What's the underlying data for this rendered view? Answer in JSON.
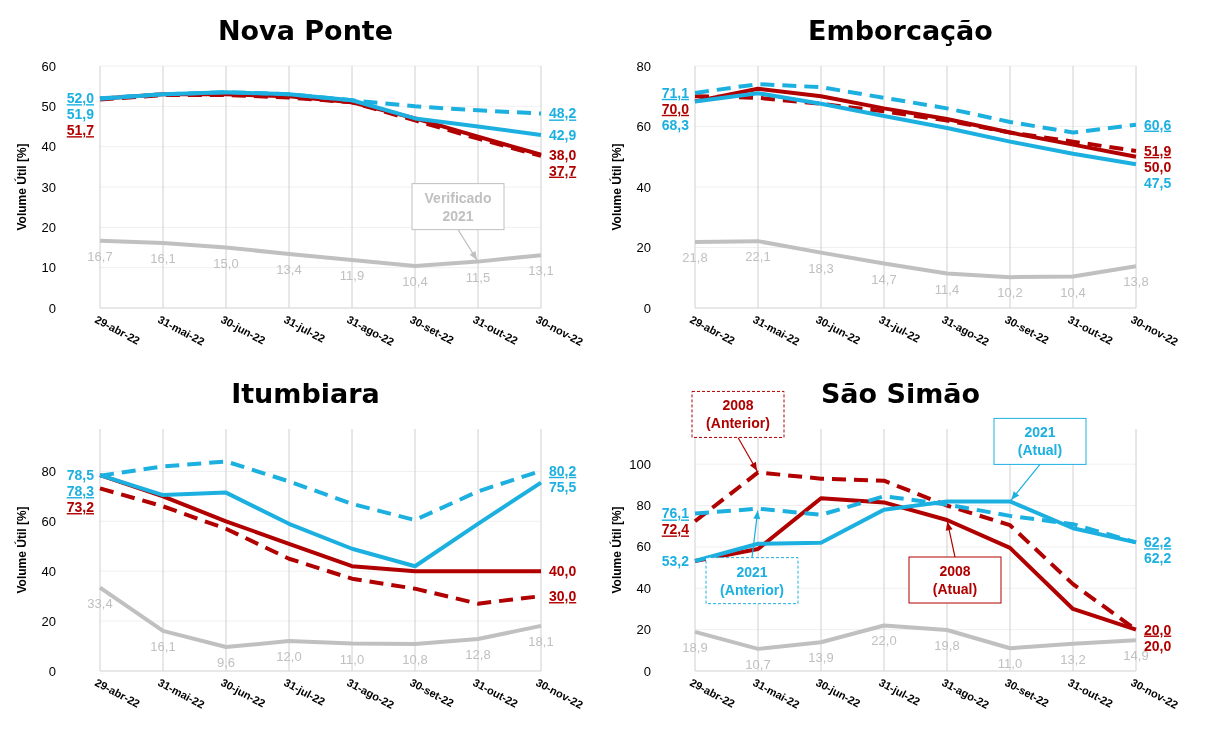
{
  "chart_data": [
    {
      "type": "line",
      "title": "Nova Ponte",
      "ylabel": "Volume Útil [%]",
      "categories": [
        "29-abr-22",
        "31-mai-22",
        "30-jun-22",
        "31-jul-22",
        "31-ago-22",
        "30-set-22",
        "31-out-22",
        "30-nov-22"
      ],
      "ylim": [
        0,
        60
      ],
      "yticks": [
        0,
        10,
        20,
        30,
        40,
        50,
        60
      ],
      "grid": true,
      "marker": "none",
      "series": [
        {
          "color": "#c0c0c0",
          "line_style": "solid",
          "values": [
            16.7,
            16.1,
            15.0,
            13.4,
            11.9,
            10.4,
            11.5,
            13.1
          ],
          "value_labels": [
            "16,7",
            "16,1",
            "15,0",
            "13,4",
            "11,9",
            "10,4",
            "11,5",
            "13,1"
          ]
        },
        {
          "color": "#b00000",
          "line_style": "dashed",
          "values": [
            51.7,
            52.8,
            52.8,
            52.2,
            51,
            46.5,
            42,
            37.7
          ],
          "value_labels": [
            "51,7",
            null,
            null,
            null,
            null,
            null,
            null,
            "37,7"
          ]
        },
        {
          "color": "#b00000",
          "line_style": "solid",
          "values": [
            51.9,
            53,
            53,
            52.5,
            51,
            47,
            42.5,
            38.0
          ],
          "value_labels": [
            null,
            null,
            null,
            null,
            null,
            null,
            null,
            "38,0"
          ]
        },
        {
          "color": "#1cb0e0",
          "line_style": "dashed",
          "values": [
            52.0,
            53,
            53.5,
            53,
            51.5,
            50,
            49,
            48.2
          ],
          "value_labels": [
            "52,0",
            null,
            null,
            null,
            null,
            null,
            null,
            "48,2"
          ]
        },
        {
          "color": "#1cb0e0",
          "line_style": "solid",
          "values": [
            51.9,
            53,
            53.5,
            53,
            51.5,
            47,
            45,
            42.9
          ],
          "value_labels": [
            "51,9",
            null,
            null,
            null,
            null,
            null,
            null,
            "42,9"
          ]
        }
      ],
      "annotations": [
        {
          "text": "Verificado 2021",
          "x": "31-out-22",
          "y": 11.5
        }
      ]
    },
    {
      "type": "line",
      "title": "Emborcação",
      "ylabel": "Volume Útil [%]",
      "categories": [
        "29-abr-22",
        "31-mai-22",
        "30-jun-22",
        "31-jul-22",
        "31-ago-22",
        "30-set-22",
        "31-out-22",
        "30-nov-22"
      ],
      "ylim": [
        0,
        80
      ],
      "yticks": [
        0,
        20,
        40,
        60,
        80
      ],
      "grid": true,
      "marker": "none",
      "series": [
        {
          "color": "#c0c0c0",
          "line_style": "solid",
          "values": [
            21.8,
            22.1,
            18.3,
            14.7,
            11.4,
            10.2,
            10.4,
            13.8
          ],
          "value_labels": [
            "21,8",
            "22,1",
            "18,3",
            "14,7",
            "11,4",
            "10,2",
            "10,4",
            "13,8"
          ]
        },
        {
          "color": "#b00000",
          "line_style": "dashed",
          "values": [
            70.0,
            69.5,
            67.5,
            65,
            62,
            58,
            55,
            51.9
          ],
          "value_labels": [
            "70,0",
            null,
            null,
            null,
            null,
            null,
            null,
            "51,9"
          ]
        },
        {
          "color": "#b00000",
          "line_style": "solid",
          "values": [
            68.3,
            72.5,
            70,
            66,
            62.5,
            58,
            54,
            50.0
          ],
          "value_labels": [
            null,
            null,
            null,
            null,
            null,
            null,
            null,
            "50,0"
          ]
        },
        {
          "color": "#1cb0e0",
          "line_style": "dashed",
          "values": [
            71.1,
            74,
            73,
            69.5,
            66,
            61.5,
            58,
            60.6
          ],
          "value_labels": [
            "71,1",
            null,
            null,
            null,
            null,
            null,
            null,
            "60,6"
          ]
        },
        {
          "color": "#1cb0e0",
          "line_style": "solid",
          "values": [
            68.3,
            71,
            67.5,
            63.5,
            59.5,
            55,
            51,
            47.5
          ],
          "value_labels": [
            "68,3",
            null,
            null,
            null,
            null,
            null,
            null,
            "47,5"
          ]
        }
      ]
    },
    {
      "type": "line",
      "title": "Itumbiara",
      "ylabel": "Volume Útil [%]",
      "categories": [
        "29-abr-22",
        "31-mai-22",
        "30-jun-22",
        "31-jul-22",
        "31-ago-22",
        "30-set-22",
        "31-out-22",
        "30-nov-22"
      ],
      "ylim": [
        0,
        97
      ],
      "yticks": [
        0,
        20,
        40,
        60,
        80
      ],
      "grid": true,
      "marker": "none",
      "series": [
        {
          "color": "#c0c0c0",
          "line_style": "solid",
          "values": [
            33.4,
            16.1,
            9.6,
            12.0,
            11.0,
            10.8,
            12.8,
            18.1
          ],
          "value_labels": [
            "33,4",
            "16,1",
            "9,6",
            "12,0",
            "11,0",
            "10,8",
            "12,8",
            "18,1"
          ]
        },
        {
          "color": "#b00000",
          "line_style": "dashed",
          "values": [
            73.2,
            66,
            57,
            45,
            37,
            33,
            27,
            30.0
          ],
          "value_labels": [
            "73,2",
            null,
            null,
            null,
            null,
            null,
            null,
            "30,0"
          ]
        },
        {
          "color": "#b00000",
          "line_style": "solid",
          "values": [
            78.5,
            70,
            60,
            51,
            42,
            40,
            40,
            40.0
          ],
          "value_labels": [
            null,
            null,
            null,
            null,
            null,
            null,
            null,
            "40,0"
          ]
        },
        {
          "color": "#1cb0e0",
          "line_style": "dashed",
          "values": [
            78.3,
            82,
            84,
            76,
            67,
            60.5,
            72,
            80.2
          ],
          "value_labels": [
            "78,3",
            null,
            null,
            null,
            null,
            null,
            null,
            "80,2"
          ]
        },
        {
          "color": "#1cb0e0",
          "line_style": "solid",
          "values": [
            78.5,
            70.5,
            71.5,
            59,
            49,
            42,
            59,
            75.5
          ],
          "value_labels": [
            "78,5",
            null,
            null,
            null,
            null,
            null,
            null,
            "75,5"
          ]
        }
      ]
    },
    {
      "type": "line",
      "title": "São Simão",
      "ylabel": "Volume Útil [%]",
      "categories": [
        "29-abr-22",
        "31-mai-22",
        "30-jun-22",
        "31-jul-22",
        "31-ago-22",
        "30-set-22",
        "31-out-22",
        "30-nov-22"
      ],
      "ylim": [
        0,
        117
      ],
      "yticks": [
        0,
        20,
        40,
        60,
        80,
        100
      ],
      "grid": true,
      "marker": "none",
      "series": [
        {
          "color": "#c0c0c0",
          "line_style": "solid",
          "values": [
            18.9,
            10.7,
            13.9,
            22.0,
            19.8,
            11.0,
            13.2,
            14.9
          ],
          "value_labels": [
            "18,9",
            "10,7",
            "13,9",
            "22,0",
            "19,8",
            "11,0",
            "13,2",
            "14,9"
          ]
        },
        {
          "color": "#b00000",
          "line_style": "dashed",
          "values": [
            72.4,
            96,
            93,
            92,
            80,
            70.5,
            42,
            20.0
          ],
          "value_labels": [
            "72,4",
            null,
            null,
            null,
            null,
            null,
            null,
            "20,0"
          ]
        },
        {
          "color": "#b00000",
          "line_style": "solid",
          "values": [
            53.2,
            59,
            83.5,
            81.5,
            73,
            59.5,
            30,
            20.0
          ],
          "value_labels": [
            null,
            null,
            null,
            null,
            null,
            null,
            null,
            "20,0"
          ]
        },
        {
          "color": "#1cb0e0",
          "line_style": "dashed",
          "values": [
            76.1,
            78.5,
            75.5,
            84.5,
            80.5,
            75,
            71,
            62.2
          ],
          "value_labels": [
            "76,1",
            null,
            null,
            null,
            null,
            null,
            null,
            "62,2"
          ]
        },
        {
          "color": "#1cb0e0",
          "line_style": "solid",
          "values": [
            53.2,
            61.5,
            62,
            78,
            82,
            82,
            69,
            62.2
          ],
          "value_labels": [
            "53,2",
            null,
            null,
            null,
            null,
            null,
            null,
            "62,2"
          ]
        }
      ],
      "annotations": [
        {
          "text": "2008 (Anterior)",
          "x": "31-mai-22",
          "y": 96
        },
        {
          "text": "2021 (Anterior)",
          "x": "31-mai-22",
          "y": 78.5
        },
        {
          "text": "2021 (Atual)",
          "x": "30-set-22",
          "y": 82
        },
        {
          "text": "2008 (Atual)",
          "x": "31-ago-22",
          "y": 73
        }
      ]
    }
  ]
}
